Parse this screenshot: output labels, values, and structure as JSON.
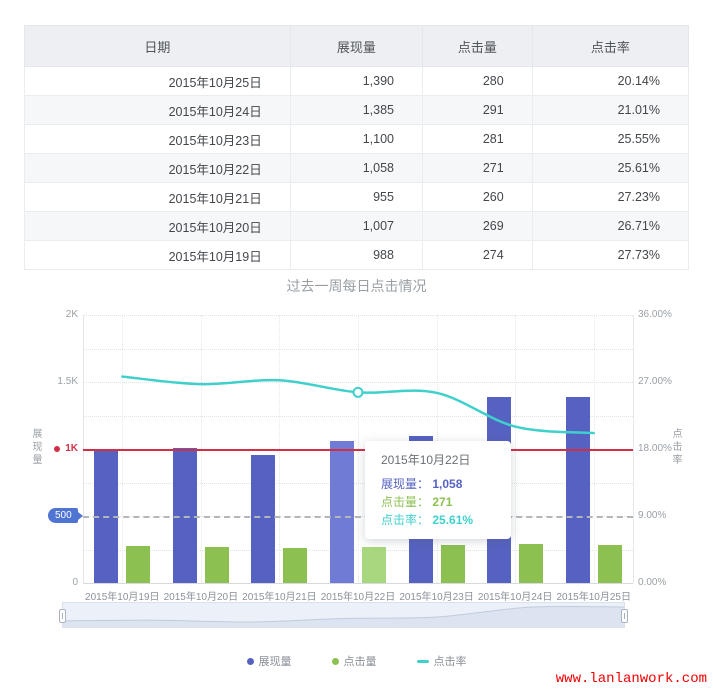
{
  "table": {
    "columns": [
      "日期",
      "展现量",
      "点击量",
      "点击率"
    ],
    "rows": [
      [
        "2015年10月25日",
        "1,390",
        "280",
        "20.14%"
      ],
      [
        "2015年10月24日",
        "1,385",
        "291",
        "21.01%"
      ],
      [
        "2015年10月23日",
        "1,100",
        "281",
        "25.55%"
      ],
      [
        "2015年10月22日",
        "1,058",
        "271",
        "25.61%"
      ],
      [
        "2015年10月21日",
        "955",
        "260",
        "27.23%"
      ],
      [
        "2015年10月20日",
        "1,007",
        "269",
        "26.71%"
      ],
      [
        "2015年10月19日",
        "988",
        "274",
        "27.73%"
      ]
    ]
  },
  "chart_data": {
    "type": "bar",
    "title": "过去一周每日点击情况",
    "categories": [
      "2015年10月19日",
      "2015年10月20日",
      "2015年10月21日",
      "2015年10月22日",
      "2015年10月23日",
      "2015年10月24日",
      "2015年10月25日"
    ],
    "series": [
      {
        "name": "展现量",
        "type": "bar",
        "axis": "left",
        "color": "#5562c1",
        "highlight_color": "#6f7bd4",
        "values": [
          988,
          1007,
          955,
          1058,
          1100,
          1385,
          1390
        ]
      },
      {
        "name": "点击量",
        "type": "bar",
        "axis": "left",
        "color": "#8cc152",
        "highlight_color": "#a9d77f",
        "values": [
          274,
          269,
          260,
          271,
          281,
          291,
          280
        ]
      },
      {
        "name": "点击率",
        "type": "line",
        "axis": "right",
        "color": "#3fd0cc",
        "values": [
          27.73,
          26.71,
          27.23,
          25.61,
          25.55,
          21.01,
          20.14
        ]
      }
    ],
    "left_axis": {
      "label": "展现量",
      "max": 2000,
      "ticks": [
        {
          "value": 0,
          "label": "0",
          "style": "plain"
        },
        {
          "value": 500,
          "label": "500",
          "style": "tag"
        },
        {
          "value": 1000,
          "label": "1K",
          "style": "red"
        },
        {
          "value": 1500,
          "label": "1.5K",
          "style": "plain"
        },
        {
          "value": 2000,
          "label": "2K",
          "style": "plain"
        }
      ]
    },
    "right_axis": {
      "label": "点击率",
      "max": 36,
      "ticks": [
        {
          "value": 0,
          "label": "0.00%"
        },
        {
          "value": 9,
          "label": "9.00%"
        },
        {
          "value": 18,
          "label": "18.00%"
        },
        {
          "value": 27,
          "label": "27.00%"
        },
        {
          "value": 36,
          "label": "36.00%"
        }
      ]
    },
    "marklines": [
      {
        "value": 1000,
        "label": "1K",
        "color": "#d22f47",
        "style": "solid"
      },
      {
        "value": 500,
        "label": "500",
        "color": "#b3b6ba",
        "style": "dashed",
        "tag_color": "#4f74d2"
      }
    ],
    "highlight_index": 3,
    "grid": "dotted",
    "legend_position": "bottom"
  },
  "tooltip": {
    "date": "2015年10月22日",
    "rows": [
      {
        "label": "展现量",
        "value": "1,058",
        "color": "#5562c1"
      },
      {
        "label": "点击量",
        "value": "271",
        "color": "#8cc152"
      },
      {
        "label": "点击率",
        "value": "25.61%",
        "color": "#3fd0cc"
      }
    ]
  },
  "watermark": "www.lanlanwork.com"
}
